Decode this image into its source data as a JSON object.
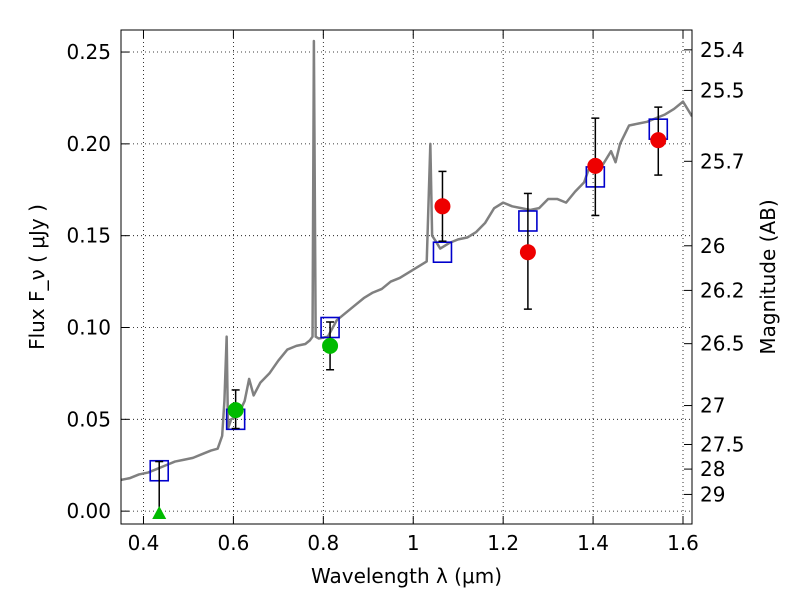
{
  "chart_data": {
    "type": "line",
    "xlabel": "Wavelength  λ (μm)",
    "ylabel": "Flux  F_ν  ( μJy )",
    "ylabel_right": "Magnitude (AB)",
    "xlim": [
      0.35,
      1.62
    ],
    "ylim": [
      -0.007,
      0.262
    ],
    "grid": true,
    "x_ticks": [
      0.4,
      0.6,
      0.8,
      1.0,
      1.2,
      1.4,
      1.6
    ],
    "x_tick_labels": [
      "0.4",
      "0.6",
      "0.8",
      "1",
      "1.2",
      "1.4",
      "1.6"
    ],
    "y_ticks": [
      0.0,
      0.05,
      0.1,
      0.15,
      0.2,
      0.25
    ],
    "y_tick_labels": [
      "0.00",
      "0.05",
      "0.10",
      "0.15",
      "0.20",
      "0.25"
    ],
    "right_ticks": [
      {
        "label": "25.4",
        "flux": 0.2512
      },
      {
        "label": "25.5",
        "flux": 0.2291
      },
      {
        "label": "25.7",
        "flux": 0.1905
      },
      {
        "label": "26",
        "flux": 0.1445
      },
      {
        "label": "26.2",
        "flux": 0.1202
      },
      {
        "label": "26.5",
        "flux": 0.0912
      },
      {
        "label": "27",
        "flux": 0.0575
      },
      {
        "label": "27.5",
        "flux": 0.0363
      },
      {
        "label": "28",
        "flux": 0.0229
      },
      {
        "label": "29",
        "flux": 0.0091
      }
    ],
    "series": [
      {
        "type": "line",
        "color": "#808080",
        "points": [
          [
            0.35,
            0.017
          ],
          [
            0.37,
            0.018
          ],
          [
            0.39,
            0.02
          ],
          [
            0.41,
            0.021
          ],
          [
            0.43,
            0.023
          ],
          [
            0.45,
            0.025
          ],
          [
            0.47,
            0.027
          ],
          [
            0.49,
            0.028
          ],
          [
            0.51,
            0.029
          ],
          [
            0.53,
            0.031
          ],
          [
            0.55,
            0.033
          ],
          [
            0.565,
            0.034
          ],
          [
            0.575,
            0.041
          ],
          [
            0.58,
            0.06
          ],
          [
            0.585,
            0.095
          ],
          [
            0.588,
            0.045
          ],
          [
            0.595,
            0.05
          ],
          [
            0.61,
            0.052
          ],
          [
            0.625,
            0.06
          ],
          [
            0.635,
            0.072
          ],
          [
            0.645,
            0.063
          ],
          [
            0.66,
            0.07
          ],
          [
            0.68,
            0.075
          ],
          [
            0.7,
            0.082
          ],
          [
            0.72,
            0.088
          ],
          [
            0.74,
            0.09
          ],
          [
            0.76,
            0.091
          ],
          [
            0.77,
            0.093
          ],
          [
            0.776,
            0.095
          ],
          [
            0.779,
            0.256
          ],
          [
            0.783,
            0.095
          ],
          [
            0.79,
            0.094
          ],
          [
            0.81,
            0.095
          ],
          [
            0.83,
            0.104
          ],
          [
            0.85,
            0.108
          ],
          [
            0.87,
            0.112
          ],
          [
            0.89,
            0.116
          ],
          [
            0.91,
            0.119
          ],
          [
            0.93,
            0.121
          ],
          [
            0.95,
            0.125
          ],
          [
            0.97,
            0.127
          ],
          [
            0.99,
            0.13
          ],
          [
            1.01,
            0.133
          ],
          [
            1.03,
            0.136
          ],
          [
            1.038,
            0.2
          ],
          [
            1.042,
            0.15
          ],
          [
            1.05,
            0.147
          ],
          [
            1.06,
            0.143
          ],
          [
            1.08,
            0.146
          ],
          [
            1.1,
            0.148
          ],
          [
            1.12,
            0.149
          ],
          [
            1.14,
            0.152
          ],
          [
            1.16,
            0.157
          ],
          [
            1.18,
            0.165
          ],
          [
            1.2,
            0.168
          ],
          [
            1.22,
            0.166
          ],
          [
            1.24,
            0.165
          ],
          [
            1.26,
            0.164
          ],
          [
            1.28,
            0.165
          ],
          [
            1.3,
            0.17
          ],
          [
            1.32,
            0.17
          ],
          [
            1.34,
            0.168
          ],
          [
            1.36,
            0.174
          ],
          [
            1.38,
            0.179
          ],
          [
            1.39,
            0.186
          ],
          [
            1.4,
            0.185
          ],
          [
            1.42,
            0.188
          ],
          [
            1.44,
            0.196
          ],
          [
            1.45,
            0.19
          ],
          [
            1.46,
            0.2
          ],
          [
            1.47,
            0.205
          ],
          [
            1.48,
            0.21
          ],
          [
            1.5,
            0.211
          ],
          [
            1.52,
            0.212
          ],
          [
            1.54,
            0.214
          ],
          [
            1.56,
            0.216
          ],
          [
            1.58,
            0.219
          ],
          [
            1.6,
            0.223
          ],
          [
            1.62,
            0.215
          ]
        ]
      },
      {
        "type": "open-square",
        "color": "#0000cc",
        "points": [
          [
            0.435,
            0.022
          ],
          [
            0.605,
            0.05
          ],
          [
            0.815,
            0.1
          ],
          [
            1.065,
            0.141
          ],
          [
            1.255,
            0.158
          ],
          [
            1.405,
            0.182
          ],
          [
            1.545,
            0.208
          ]
        ]
      },
      {
        "type": "circle-errorbar",
        "color": "#00bb00",
        "points": [
          {
            "x": 0.605,
            "y": 0.055,
            "lo": 0.045,
            "hi": 0.066
          },
          {
            "x": 0.815,
            "y": 0.09,
            "lo": 0.077,
            "hi": 0.103
          }
        ]
      },
      {
        "type": "circle-errorbar",
        "color": "#ee0000",
        "points": [
          {
            "x": 1.065,
            "y": 0.166,
            "lo": 0.147,
            "hi": 0.185
          },
          {
            "x": 1.255,
            "y": 0.141,
            "lo": 0.11,
            "hi": 0.173
          },
          {
            "x": 1.405,
            "y": 0.188,
            "lo": 0.161,
            "hi": 0.214
          },
          {
            "x": 1.545,
            "y": 0.202,
            "lo": 0.183,
            "hi": 0.22
          }
        ]
      },
      {
        "type": "triangle-upperlimit",
        "color": "#00bb00",
        "points": [
          {
            "x": 0.435,
            "y": -0.001,
            "hi": 0.027
          }
        ]
      }
    ]
  }
}
